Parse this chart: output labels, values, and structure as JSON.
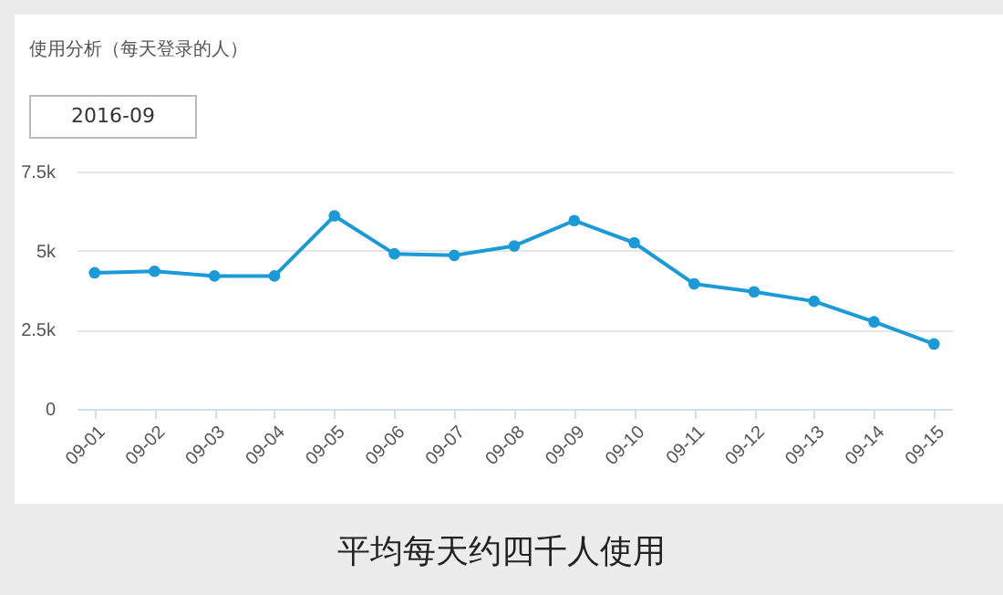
{
  "chart_data": {
    "type": "line",
    "title": "使用分析（每天登录的人）",
    "categories": [
      "09-01",
      "09-02",
      "09-03",
      "09-04",
      "09-05",
      "09-06",
      "09-07",
      "09-08",
      "09-09",
      "09-10",
      "09-11",
      "09-12",
      "09-13",
      "09-14",
      "09-15"
    ],
    "series": [
      {
        "color": "#1a9ad6",
        "values": [
          4300,
          4350,
          4200,
          4200,
          6100,
          4900,
          4850,
          5150,
          5950,
          5250,
          3950,
          3700,
          3400,
          2750,
          2050
        ]
      }
    ],
    "ylim": [
      0,
      7500
    ],
    "yticks": [
      {
        "value": 0,
        "label": "0"
      },
      {
        "value": 2500,
        "label": "2.5k"
      },
      {
        "value": 5000,
        "label": "5k"
      },
      {
        "value": 7500,
        "label": "7.5k"
      }
    ],
    "grid": "y",
    "marker": "circle",
    "line_style": "solid",
    "annotations": [
      "2016-09",
      "平均每天约四千人使用"
    ]
  }
}
